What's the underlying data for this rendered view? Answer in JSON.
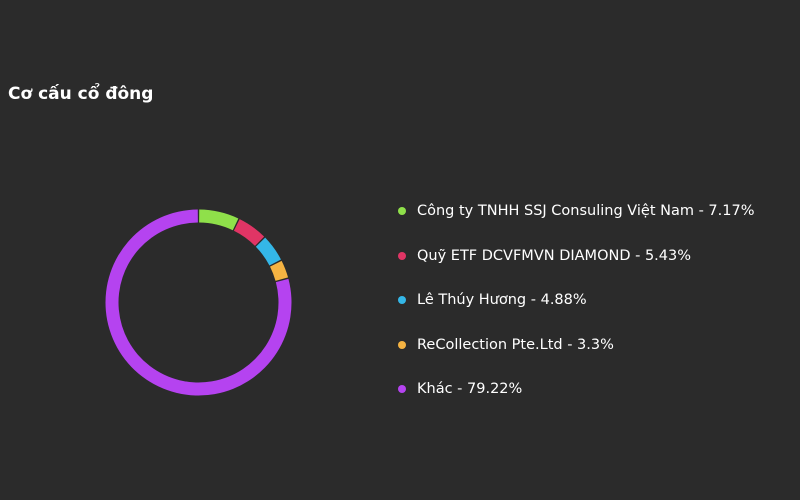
{
  "chart_data": {
    "type": "pie",
    "title": "Cơ cấu cổ đông",
    "slices": [
      {
        "name": "Công ty TNHH SSJ Consuling Việt Nam",
        "value": 7.17,
        "label": "Công ty TNHH SSJ Consuling Việt Nam - 7.17%",
        "color": "#8fe04a"
      },
      {
        "name": "Quỹ ETF DCVFMVN DIAMOND",
        "value": 5.43,
        "label": "Quỹ ETF DCVFMVN DIAMOND - 5.43%",
        "color": "#e03565"
      },
      {
        "name": "Lê Thúy Hương",
        "value": 4.88,
        "label": "Lê Thúy Hương - 4.88%",
        "color": "#34b7e8"
      },
      {
        "name": "ReCollection Pte.Ltd",
        "value": 3.3,
        "label": "ReCollection Pte.Ltd - 3.3%",
        "color": "#f5b342"
      },
      {
        "name": "Khác",
        "value": 79.22,
        "label": "Khác - 79.22%",
        "color": "#b543f0"
      }
    ],
    "legend_position": "right"
  }
}
